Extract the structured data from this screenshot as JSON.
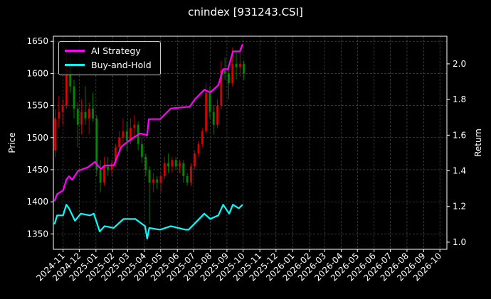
{
  "chart_data": {
    "type": "candlestick+line",
    "title": "cnindex [931243.CSI]",
    "ylabel_left": "Price",
    "ylabel_right": "Return",
    "xlim": [
      "2024-10-14",
      "2026-10-14"
    ],
    "ylim_left": [
      1326,
      1658
    ],
    "ylim_right": [
      0.96,
      2.155
    ],
    "grid": true,
    "legend_placement": "top-left",
    "x_ticks": [
      "2024-11",
      "2024-12",
      "2025-01",
      "2025-02",
      "2025-03",
      "2025-04",
      "2025-05",
      "2025-06",
      "2025-07",
      "2025-08",
      "2025-09",
      "2025-10",
      "2025-11",
      "2025-12",
      "2026-01",
      "2026-02",
      "2026-03",
      "2026-04",
      "2026-05",
      "2026-06",
      "2026-07",
      "2026-08",
      "2026-09",
      "2026-10"
    ],
    "y_ticks_left": [
      1350,
      1400,
      1450,
      1500,
      1550,
      1600,
      1650
    ],
    "y_ticks_right": [
      1.0,
      1.2,
      1.4,
      1.6,
      1.8,
      2.0
    ],
    "colors": {
      "background": "#000000",
      "up": "#ff0000",
      "down": "#00a000",
      "ai_strategy": "#ff00ff",
      "buy_and_hold": "#00ffff",
      "grid": "#555555"
    },
    "candles_columns": [
      "date",
      "open",
      "high",
      "low",
      "close"
    ],
    "candles": [
      [
        "2024-10-14",
        1480,
        1545,
        1470,
        1530
      ],
      [
        "2024-10-21",
        1530,
        1565,
        1515,
        1540
      ],
      [
        "2024-10-28",
        1540,
        1560,
        1520,
        1550
      ],
      [
        "2024-11-04",
        1550,
        1640,
        1545,
        1610
      ],
      [
        "2024-11-11",
        1610,
        1625,
        1570,
        1580
      ],
      [
        "2024-11-18",
        1580,
        1590,
        1530,
        1545
      ],
      [
        "2024-11-25",
        1545,
        1555,
        1485,
        1520
      ],
      [
        "2024-12-02",
        1520,
        1560,
        1505,
        1540
      ],
      [
        "2024-12-09",
        1540,
        1580,
        1520,
        1530
      ],
      [
        "2024-12-16",
        1530,
        1555,
        1505,
        1545
      ],
      [
        "2024-12-23",
        1545,
        1570,
        1525,
        1530
      ],
      [
        "2024-12-30",
        1530,
        1535,
        1440,
        1450
      ],
      [
        "2025-01-06",
        1450,
        1465,
        1415,
        1430
      ],
      [
        "2025-01-13",
        1430,
        1470,
        1425,
        1455
      ],
      [
        "2025-01-20",
        1455,
        1470,
        1440,
        1450
      ],
      [
        "2025-01-27",
        1450,
        1465,
        1440,
        1460
      ],
      [
        "2025-02-03",
        1460,
        1490,
        1455,
        1485
      ],
      [
        "2025-02-10",
        1485,
        1510,
        1475,
        1500
      ],
      [
        "2025-02-17",
        1500,
        1530,
        1490,
        1510
      ],
      [
        "2025-02-24",
        1510,
        1525,
        1480,
        1495
      ],
      [
        "2025-03-03",
        1495,
        1530,
        1490,
        1515
      ],
      [
        "2025-03-10",
        1515,
        1535,
        1500,
        1520
      ],
      [
        "2025-03-17",
        1520,
        1525,
        1480,
        1490
      ],
      [
        "2025-03-24",
        1490,
        1500,
        1460,
        1470
      ],
      [
        "2025-03-31",
        1470,
        1475,
        1440,
        1450
      ],
      [
        "2025-04-07",
        1450,
        1455,
        1365,
        1430
      ],
      [
        "2025-04-14",
        1430,
        1445,
        1415,
        1435
      ],
      [
        "2025-04-21",
        1435,
        1440,
        1420,
        1430
      ],
      [
        "2025-04-28",
        1430,
        1445,
        1415,
        1440
      ],
      [
        "2025-05-05",
        1440,
        1470,
        1435,
        1460
      ],
      [
        "2025-05-12",
        1460,
        1475,
        1445,
        1455
      ],
      [
        "2025-05-19",
        1455,
        1470,
        1445,
        1465
      ],
      [
        "2025-05-26",
        1465,
        1470,
        1450,
        1455
      ],
      [
        "2025-06-02",
        1455,
        1465,
        1445,
        1460
      ],
      [
        "2025-06-09",
        1460,
        1465,
        1430,
        1440
      ],
      [
        "2025-06-16",
        1440,
        1445,
        1425,
        1430
      ],
      [
        "2025-06-23",
        1430,
        1460,
        1425,
        1455
      ],
      [
        "2025-06-30",
        1455,
        1480,
        1450,
        1475
      ],
      [
        "2025-07-07",
        1475,
        1495,
        1470,
        1490
      ],
      [
        "2025-07-14",
        1490,
        1515,
        1485,
        1510
      ],
      [
        "2025-07-21",
        1510,
        1585,
        1505,
        1570
      ],
      [
        "2025-07-28",
        1570,
        1580,
        1530,
        1540
      ],
      [
        "2025-08-04",
        1540,
        1550,
        1505,
        1520
      ],
      [
        "2025-08-11",
        1520,
        1560,
        1515,
        1550
      ],
      [
        "2025-08-18",
        1550,
        1620,
        1545,
        1605
      ],
      [
        "2025-08-25",
        1605,
        1625,
        1590,
        1600
      ],
      [
        "2025-09-01",
        1600,
        1615,
        1560,
        1585
      ],
      [
        "2025-09-08",
        1585,
        1640,
        1580,
        1615
      ],
      [
        "2025-09-15",
        1615,
        1635,
        1590,
        1610
      ],
      [
        "2025-09-22",
        1610,
        1640,
        1595,
        1615
      ],
      [
        "2025-09-29",
        1615,
        1620,
        1590,
        1600
      ]
    ],
    "series": [
      {
        "name": "AI Strategy",
        "axis": "right",
        "points": [
          [
            "2024-10-16",
            1.23
          ],
          [
            "2024-10-21",
            1.27
          ],
          [
            "2024-11-01",
            1.29
          ],
          [
            "2024-11-07",
            1.35
          ],
          [
            "2024-11-12",
            1.37
          ],
          [
            "2024-11-18",
            1.35
          ],
          [
            "2024-11-29",
            1.4
          ],
          [
            "2024-12-17",
            1.42
          ],
          [
            "2024-12-30",
            1.45
          ],
          [
            "2025-01-10",
            1.41
          ],
          [
            "2025-01-17",
            1.43
          ],
          [
            "2025-02-03",
            1.43
          ],
          [
            "2025-02-17",
            1.535
          ],
          [
            "2025-03-06",
            1.575
          ],
          [
            "2025-03-24",
            1.61
          ],
          [
            "2025-04-06",
            1.6
          ],
          [
            "2025-04-09",
            1.69
          ],
          [
            "2025-04-30",
            1.69
          ],
          [
            "2025-05-20",
            1.75
          ],
          [
            "2025-06-24",
            1.76
          ],
          [
            "2025-07-03",
            1.8
          ],
          [
            "2025-07-21",
            1.855
          ],
          [
            "2025-08-01",
            1.84
          ],
          [
            "2025-08-16",
            1.88
          ],
          [
            "2025-08-25",
            1.97
          ],
          [
            "2025-09-03",
            1.97
          ],
          [
            "2025-09-12",
            2.07
          ],
          [
            "2025-09-25",
            2.07
          ],
          [
            "2025-09-30",
            2.11
          ]
        ]
      },
      {
        "name": "Buy-and-Hold",
        "axis": "right",
        "points": [
          [
            "2024-10-16",
            1.1
          ],
          [
            "2024-10-21",
            1.15
          ],
          [
            "2024-11-01",
            1.15
          ],
          [
            "2024-11-07",
            1.21
          ],
          [
            "2024-11-12",
            1.19
          ],
          [
            "2024-11-23",
            1.12
          ],
          [
            "2024-12-04",
            1.16
          ],
          [
            "2024-12-21",
            1.15
          ],
          [
            "2024-12-28",
            1.16
          ],
          [
            "2025-01-08",
            1.06
          ],
          [
            "2025-01-17",
            1.09
          ],
          [
            "2025-02-03",
            1.08
          ],
          [
            "2025-02-21",
            1.13
          ],
          [
            "2025-03-15",
            1.13
          ],
          [
            "2025-04-02",
            1.09
          ],
          [
            "2025-04-06",
            1.02
          ],
          [
            "2025-04-10",
            1.08
          ],
          [
            "2025-04-30",
            1.07
          ],
          [
            "2025-05-20",
            1.09
          ],
          [
            "2025-06-16",
            1.07
          ],
          [
            "2025-06-22",
            1.07
          ],
          [
            "2025-07-21",
            1.16
          ],
          [
            "2025-08-01",
            1.13
          ],
          [
            "2025-08-16",
            1.15
          ],
          [
            "2025-08-25",
            1.21
          ],
          [
            "2025-09-05",
            1.16
          ],
          [
            "2025-09-12",
            1.21
          ],
          [
            "2025-09-23",
            1.19
          ],
          [
            "2025-09-30",
            1.21
          ]
        ]
      }
    ]
  }
}
